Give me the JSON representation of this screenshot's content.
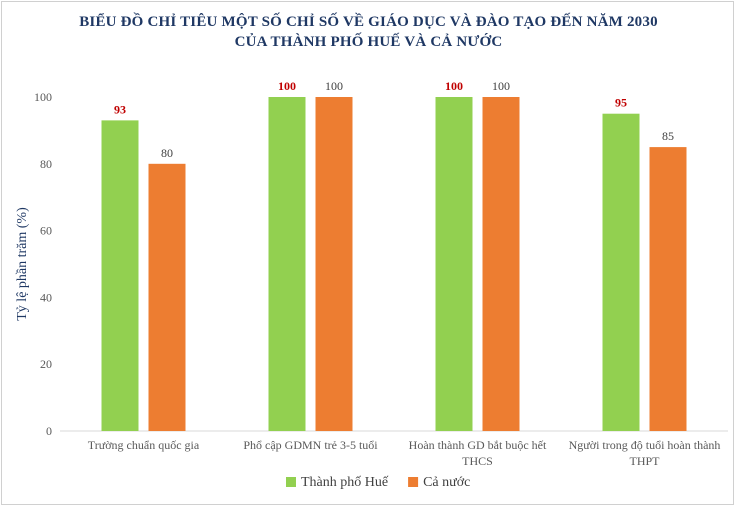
{
  "chart_data": {
    "type": "bar",
    "title_lines": [
      "BIỂU ĐỒ CHỈ TIÊU MỘT SỐ CHỈ SỐ VỀ GIÁO DỤC VÀ ĐÀO TẠO ĐẾN NĂM 2030",
      "CỦA THÀNH PHỐ HUẾ VÀ CẢ NƯỚC"
    ],
    "ylabel": "Tỷ lệ phần trăm (%)",
    "xlabel": "",
    "ylim": [
      0,
      100
    ],
    "yticks": [
      "0",
      "20",
      "40",
      "60",
      "80",
      "100"
    ],
    "grid": false,
    "legend_position": "bottom",
    "categories": [
      [
        "Trường chuẩn quốc gia"
      ],
      [
        "Phổ cập GDMN trẻ 3-5 tuổi"
      ],
      [
        "Hoàn thành GD bắt buộc hết",
        "THCS"
      ],
      [
        "Người trong độ tuổi hoàn thành",
        "THPT"
      ]
    ],
    "series": [
      {
        "name": "Thành phố Huế",
        "color": "#92d050",
        "label_color": "#c00000",
        "values": [
          93,
          100,
          100,
          95
        ]
      },
      {
        "name": "Cả nước",
        "color": "#ed7d31",
        "label_color": "#404040",
        "values": [
          80,
          100,
          100,
          85
        ]
      }
    ]
  }
}
